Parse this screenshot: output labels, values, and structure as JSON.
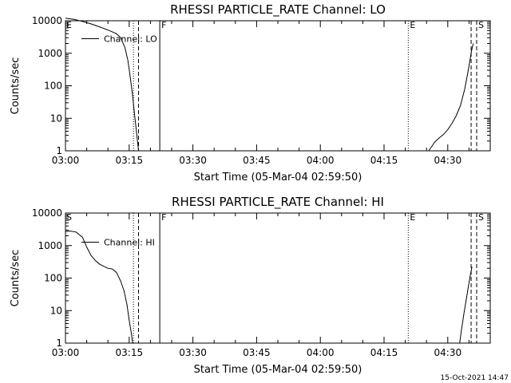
{
  "chart_data": [
    {
      "type": "line",
      "title": "RHESSI  PARTICLE_RATE  Channel:  LO",
      "xlabel": "Start Time (05-Mar-04 02:59:50)",
      "ylabel": "Counts/sec",
      "y_scale": "log",
      "ylim": [
        1,
        10000
      ],
      "yticks": [
        1,
        10,
        100,
        1000,
        10000
      ],
      "ytick_labels": [
        "1",
        "10",
        "100",
        "1000",
        "10000"
      ],
      "xlim_minutes_after_0300": [
        0,
        100
      ],
      "xtick_labels": [
        "03:00",
        "03:15",
        "03:30",
        "03:45",
        "04:00",
        "04:15",
        "04:30"
      ],
      "xtick_minutes": [
        0,
        15,
        30,
        45,
        60,
        75,
        90
      ],
      "legend": {
        "label": "Channel: LO",
        "placement": "top-left"
      },
      "series": [
        {
          "name": "Channel: LO",
          "segments": [
            [
              [
                0,
                12000
              ],
              [
                2,
                11000
              ],
              [
                4,
                9500
              ],
              [
                6,
                8000
              ],
              [
                8,
                6500
              ],
              [
                10,
                5200
              ],
              [
                12,
                4000
              ],
              [
                13,
                3000
              ],
              [
                14,
                1500
              ],
              [
                14.7,
                600
              ],
              [
                15.2,
                200
              ],
              [
                15.8,
                50
              ],
              [
                16.3,
                12
              ],
              [
                16.8,
                3
              ],
              [
                17.2,
                1
              ]
            ],
            [
              [
                85.5,
                1
              ],
              [
                86.3,
                1.4
              ],
              [
                87,
                1.9
              ],
              [
                88,
                2.5
              ],
              [
                89,
                3.2
              ],
              [
                90,
                4.5
              ],
              [
                91,
                7
              ],
              [
                92,
                12
              ],
              [
                93,
                25
              ],
              [
                94,
                80
              ],
              [
                95,
                400
              ],
              [
                95.6,
                1200
              ],
              [
                96,
                2000
              ]
            ]
          ]
        }
      ],
      "vlines": [
        {
          "x": 16.0,
          "style": "dotted"
        },
        {
          "x": 17.2,
          "style": "dashed"
        },
        {
          "x": 22.2,
          "style": "solid",
          "mark": "F"
        },
        {
          "x": 80.7,
          "style": "dotted",
          "mark": "E"
        },
        {
          "x": 95.5,
          "style": "dashed"
        },
        {
          "x": 96.8,
          "style": "dashed",
          "mark": "S"
        }
      ],
      "corner_mark": "E"
    },
    {
      "type": "line",
      "title": "RHESSI  PARTICLE_RATE  Channel:  HI",
      "xlabel": "Start Time (05-Mar-04 02:59:50)",
      "ylabel": "Counts/sec",
      "y_scale": "log",
      "ylim": [
        1,
        10000
      ],
      "yticks": [
        1,
        10,
        100,
        1000,
        10000
      ],
      "ytick_labels": [
        "1",
        "10",
        "100",
        "1000",
        "10000"
      ],
      "xlim_minutes_after_0300": [
        0,
        100
      ],
      "xtick_labels": [
        "03:00",
        "03:15",
        "03:30",
        "03:45",
        "04:00",
        "04:15",
        "04:30"
      ],
      "xtick_minutes": [
        0,
        15,
        30,
        45,
        60,
        75,
        90
      ],
      "legend": {
        "label": "Channel: HI",
        "placement": "top-left"
      },
      "series": [
        {
          "name": "Channel: HI",
          "segments": [
            [
              [
                0,
                2700
              ],
              [
                1,
                2800
              ],
              [
                2.5,
                2600
              ],
              [
                4,
                1800
              ],
              [
                5,
                900
              ],
              [
                6,
                500
              ],
              [
                7,
                350
              ],
              [
                8,
                270
              ],
              [
                9,
                230
              ],
              [
                10,
                200
              ],
              [
                11,
                190
              ],
              [
                12,
                150
              ],
              [
                13,
                80
              ],
              [
                13.8,
                40
              ],
              [
                14.5,
                15
              ],
              [
                15,
                5
              ],
              [
                15.5,
                2
              ],
              [
                15.8,
                1
              ]
            ],
            [
              [
                92.8,
                1
              ],
              [
                93.3,
                3
              ],
              [
                93.8,
                8
              ],
              [
                94.3,
                20
              ],
              [
                94.8,
                50
              ],
              [
                95.3,
                120
              ],
              [
                95.7,
                220
              ]
            ]
          ]
        }
      ],
      "vlines": [
        {
          "x": 16.0,
          "style": "dotted"
        },
        {
          "x": 17.2,
          "style": "dashed"
        },
        {
          "x": 22.2,
          "style": "solid",
          "mark": "F"
        },
        {
          "x": 80.7,
          "style": "dotted",
          "mark": "E"
        },
        {
          "x": 95.5,
          "style": "dashed"
        },
        {
          "x": 96.8,
          "style": "dashed",
          "mark": "S"
        }
      ],
      "corner_mark": "S"
    }
  ],
  "timestamp": "15-Oct-2021 14:47",
  "colors": {
    "background": "#ffffff",
    "foreground": "#000000"
  }
}
